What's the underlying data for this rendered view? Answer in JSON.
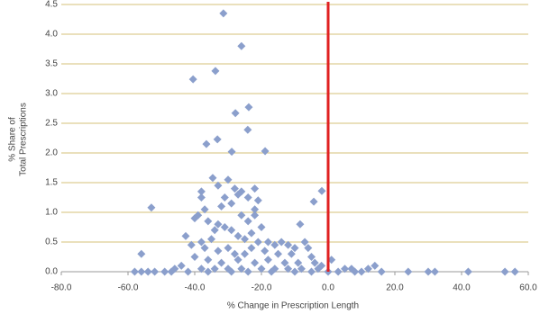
{
  "chart_data": {
    "type": "scatter",
    "ylabel": [
      "% Share of",
      "Total Prescriptions"
    ],
    "xlabel": "% Change in Prescription Length",
    "color": "#8b9fcc",
    "grid": true,
    "grid_color": "#d6c27a",
    "reference_line": {
      "x": 0,
      "color": "#e02020"
    },
    "xlim": [
      -80,
      60
    ],
    "ylim": [
      0,
      4.5
    ],
    "xticks": [
      {
        "value": -80,
        "label": "-80.0"
      },
      {
        "value": -60,
        "label": "-60.0"
      },
      {
        "value": -40,
        "label": "-40.0"
      },
      {
        "value": -20,
        "label": "-20.0"
      },
      {
        "value": 0,
        "label": "0.0"
      },
      {
        "value": 20,
        "label": "20.0"
      },
      {
        "value": 40,
        "label": "40.0"
      },
      {
        "value": 60,
        "label": "60.0"
      }
    ],
    "yticks": [
      {
        "value": 0,
        "label": "0.0"
      },
      {
        "value": 0.5,
        "label": "0.5"
      },
      {
        "value": 1,
        "label": "1.0"
      },
      {
        "value": 1.5,
        "label": "1.5"
      },
      {
        "value": 2,
        "label": "2.0"
      },
      {
        "value": 2.5,
        "label": "2.5"
      },
      {
        "value": 3,
        "label": "3.0"
      },
      {
        "value": 3.5,
        "label": "3.5"
      },
      {
        "value": 4,
        "label": "4.0"
      },
      {
        "value": 4.5,
        "label": "4.5"
      }
    ],
    "x": [
      -31.4,
      -26,
      -40.5,
      -33.8,
      -23.8,
      -27.8,
      -24.1,
      -33.2,
      -36.5,
      -28.9,
      -18.9,
      -34.6,
      -1.9,
      -4.3,
      -53,
      -8.4,
      -42.7,
      -56,
      -38,
      -38,
      -37,
      -39,
      -40,
      -36,
      -33,
      -31,
      -34,
      -29,
      -27,
      -26,
      -24,
      -22,
      -21,
      -22,
      -22,
      -24,
      -20,
      -29,
      -31,
      -33,
      -30,
      -28,
      -32,
      -26,
      -27,
      -25,
      -23,
      -21,
      -18,
      -16,
      -14,
      -12,
      -10,
      -7,
      -6,
      -5,
      -11,
      -15,
      -19,
      -35,
      -38,
      -41,
      -37,
      -33,
      -30,
      -28,
      -25,
      -23,
      -40,
      -44,
      -46,
      -36,
      -32,
      -27,
      -22,
      -18,
      -13,
      -9,
      -4,
      -2,
      1,
      -38,
      -34,
      -30,
      -26,
      -20,
      -16,
      -12,
      -8,
      -3,
      -58,
      -56,
      -54,
      -52,
      -49,
      -47,
      -42,
      -36,
      -29,
      -24,
      -17,
      -10,
      -5,
      0,
      3,
      5,
      7,
      8,
      10,
      12,
      14,
      16,
      24,
      30,
      32,
      42,
      53,
      56
    ],
    "values": [
      4.35,
      3.8,
      3.24,
      3.38,
      2.77,
      2.67,
      2.39,
      2.23,
      2.15,
      2.02,
      2.03,
      1.58,
      1.36,
      1.18,
      1.08,
      0.8,
      0.6,
      0.3,
      1.35,
      1.25,
      1.05,
      0.95,
      0.9,
      0.85,
      0.8,
      0.75,
      0.7,
      0.7,
      1.3,
      1.35,
      1.25,
      1.4,
      1.2,
      1.05,
      0.95,
      0.85,
      0.75,
      1.15,
      1.25,
      1.45,
      1.55,
      1.4,
      1.1,
      0.95,
      0.6,
      0.55,
      0.65,
      0.5,
      0.5,
      0.45,
      0.5,
      0.45,
      0.4,
      0.5,
      0.4,
      0.25,
      0.3,
      0.3,
      0.35,
      0.55,
      0.5,
      0.45,
      0.4,
      0.35,
      0.4,
      0.3,
      0.3,
      0.4,
      0.25,
      0.1,
      0.05,
      0.2,
      0.15,
      0.2,
      0.15,
      0.2,
      0.15,
      0.15,
      0.15,
      0.1,
      0.2,
      0.05,
      0.05,
      0.05,
      0.05,
      0.05,
      0.05,
      0.05,
      0.05,
      0.05,
      0,
      0,
      0,
      0,
      0,
      0,
      0,
      0,
      0,
      0,
      0,
      0,
      0,
      0,
      0,
      0.05,
      0.05,
      0,
      0,
      0.05,
      0.1,
      0,
      0,
      0,
      0,
      0,
      0,
      0
    ]
  }
}
